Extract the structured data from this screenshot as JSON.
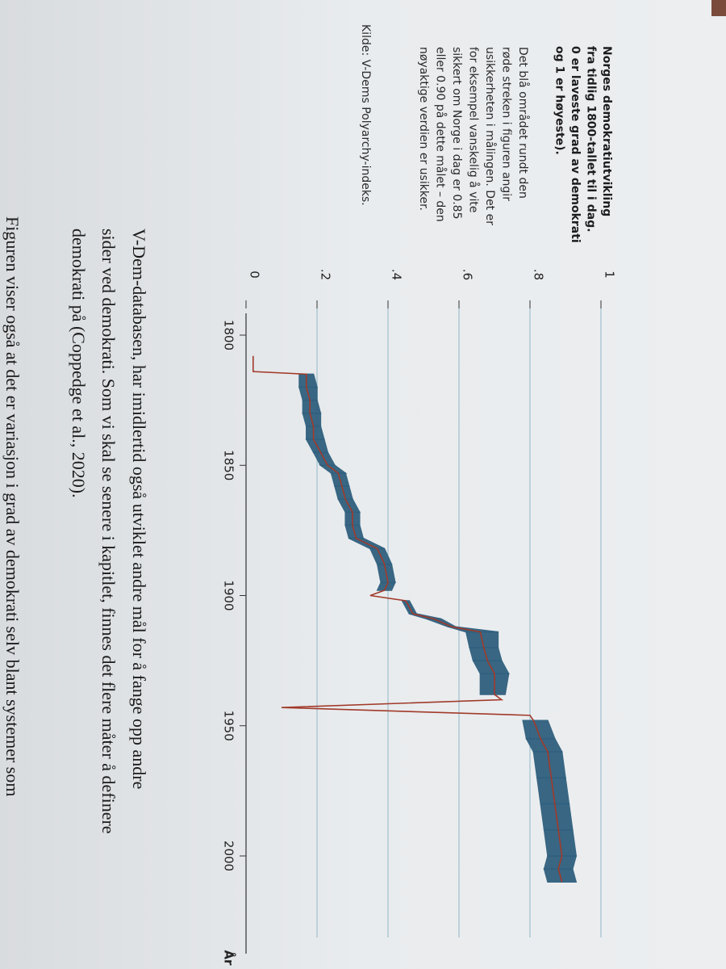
{
  "chart_data": {
    "type": "line",
    "caption_title": [
      "Norges demokratiutvikling",
      "fra tidlig 1800-tallet til i dag.",
      "0 er laveste grad av demokrati",
      "og 1 er høyeste)."
    ],
    "caption_text": [
      "Det blå området rundt den",
      "røde streken i figuren angir",
      "usikkerheten i målingen. Det er",
      "for eksempel vanskelig å vite",
      "sikkert om Norge i dag er 0.85",
      "eller 0.90 på dette målet – den",
      "nøyaktige verdien er usikker."
    ],
    "source": "Kilde: V-Dems Polyarchy-indeks.",
    "x_label": "År",
    "body_text": [
      "V-Dem-databasen, har imidlertid også utviklet andre mål for å fange opp andre",
      "sider ved demokrati. Som vi skal se senere i kapitlet, finnes det flere måter å definere",
      "demokrati på (Coppedge et al., 2020).",
      "Figuren viser også at det er variasjon i grad av demokrati selv blant systemer som"
    ],
    "x": [
      1808,
      1814,
      1815,
      1820,
      1825,
      1830,
      1835,
      1840,
      1845,
      1850,
      1853,
      1858,
      1863,
      1868,
      1873,
      1878,
      1882,
      1888,
      1895,
      1898,
      1900,
      1902,
      1907,
      1909,
      1912,
      1914,
      1920,
      1925,
      1930,
      1938,
      1940,
      1943,
      1946,
      1948,
      1955,
      1960,
      1970,
      1980,
      1990,
      2000,
      2005,
      2010
    ],
    "values": [
      0.02,
      0.02,
      0.17,
      0.17,
      0.18,
      0.18,
      0.19,
      0.19,
      0.21,
      0.23,
      0.26,
      0.27,
      0.28,
      0.3,
      0.3,
      0.31,
      0.37,
      0.39,
      0.4,
      0.39,
      0.35,
      0.45,
      0.47,
      0.53,
      0.58,
      0.66,
      0.67,
      0.68,
      0.7,
      0.7,
      0.72,
      0.1,
      0.8,
      0.81,
      0.83,
      0.85,
      0.86,
      0.87,
      0.88,
      0.89,
      0.88,
      0.89
    ],
    "lower": [
      null,
      null,
      0.15,
      0.15,
      0.16,
      0.16,
      0.17,
      0.17,
      0.19,
      0.21,
      0.24,
      0.25,
      0.26,
      0.28,
      0.28,
      0.29,
      0.35,
      0.37,
      0.38,
      0.37,
      null,
      0.44,
      0.46,
      0.51,
      0.57,
      0.62,
      0.63,
      0.64,
      0.66,
      0.66,
      null,
      null,
      null,
      0.78,
      0.79,
      0.81,
      0.82,
      0.83,
      0.84,
      0.85,
      0.84,
      0.85
    ],
    "upper": [
      null,
      null,
      0.19,
      0.2,
      0.2,
      0.21,
      0.21,
      0.22,
      0.23,
      0.25,
      0.28,
      0.29,
      0.3,
      0.32,
      0.32,
      0.33,
      0.39,
      0.41,
      0.42,
      0.41,
      null,
      0.46,
      0.48,
      0.55,
      0.59,
      0.71,
      0.71,
      0.72,
      0.74,
      0.73,
      null,
      null,
      null,
      0.85,
      0.87,
      0.89,
      0.9,
      0.91,
      0.92,
      0.93,
      0.92,
      0.93
    ],
    "line_color": "#a13a2a",
    "band_color": "#2f5f7e",
    "xlim": [
      1795,
      2022
    ],
    "xticks": [
      1800,
      1850,
      1900,
      1950,
      2000
    ],
    "ylim": [
      0,
      1
    ],
    "yticks": [
      0,
      {
        "value": 0.2,
        "label": ".2"
      },
      {
        "value": 0.4,
        "label": ".4"
      },
      {
        "value": 0.6,
        "label": ".6"
      },
      {
        "value": 0.8,
        "label": ".8"
      },
      1
    ],
    "grid": true
  }
}
